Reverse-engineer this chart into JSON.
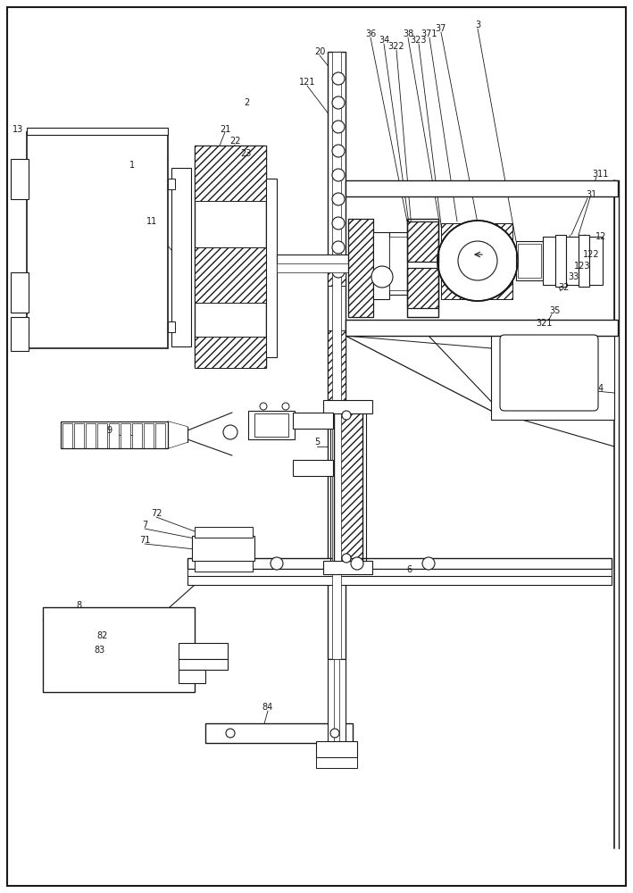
{
  "background_color": "#ffffff",
  "line_color": "#000000",
  "fig_width": 7.09,
  "fig_height": 10.0,
  "dpi": 100
}
